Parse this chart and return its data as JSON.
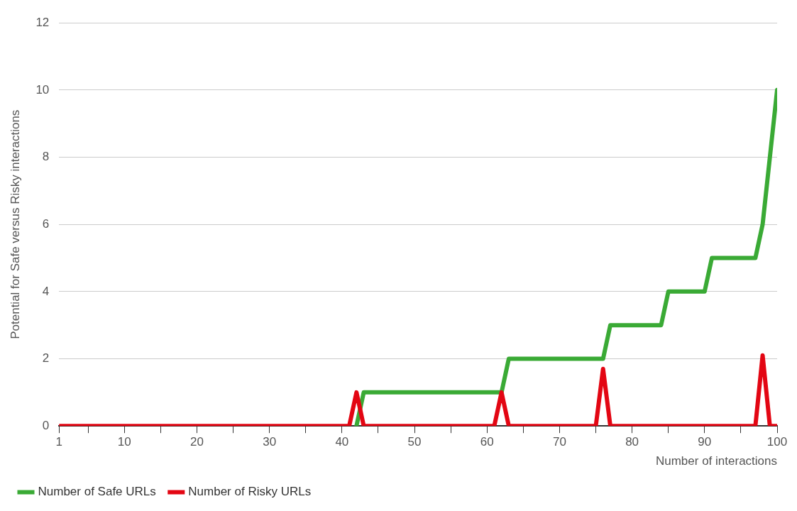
{
  "chart_data": {
    "type": "line",
    "xlabel": "Number of interactions",
    "ylabel": "Potential for Safe versus Risky interactions",
    "x": [
      1,
      2,
      3,
      4,
      5,
      6,
      7,
      8,
      9,
      10,
      11,
      12,
      13,
      14,
      15,
      16,
      17,
      18,
      19,
      20,
      21,
      22,
      23,
      24,
      25,
      26,
      27,
      28,
      29,
      30,
      31,
      32,
      33,
      34,
      35,
      36,
      37,
      38,
      39,
      40,
      41,
      42,
      43,
      44,
      45,
      46,
      47,
      48,
      49,
      50,
      51,
      52,
      53,
      54,
      55,
      56,
      57,
      58,
      59,
      60,
      61,
      62,
      63,
      64,
      65,
      66,
      67,
      68,
      69,
      70,
      71,
      72,
      73,
      74,
      75,
      76,
      77,
      78,
      79,
      80,
      81,
      82,
      83,
      84,
      85,
      86,
      87,
      88,
      89,
      90,
      91,
      92,
      93,
      94,
      95,
      96,
      97,
      98,
      99,
      100
    ],
    "series": [
      {
        "name": "Number of Safe URLs",
        "color": "#3aaa35",
        "values": [
          null,
          null,
          null,
          null,
          null,
          null,
          null,
          null,
          null,
          null,
          null,
          null,
          null,
          null,
          null,
          null,
          null,
          null,
          null,
          null,
          null,
          null,
          null,
          null,
          null,
          null,
          null,
          null,
          null,
          null,
          null,
          null,
          null,
          null,
          null,
          null,
          null,
          null,
          null,
          null,
          null,
          0,
          1,
          1,
          1,
          1,
          1,
          1,
          1,
          1,
          1,
          1,
          1,
          1,
          1,
          1,
          1,
          1,
          1,
          1,
          1,
          1,
          2,
          2,
          2,
          2,
          2,
          2,
          2,
          2,
          2,
          2,
          2,
          2,
          2,
          2,
          3,
          3,
          3,
          3,
          3,
          3,
          3,
          3,
          4,
          4,
          4,
          4,
          4,
          4,
          5,
          5,
          5,
          5,
          5,
          5,
          5,
          6,
          8,
          10
        ]
      },
      {
        "name": "Number of Risky URLs",
        "color": "#e30613",
        "values": [
          0,
          0,
          0,
          0,
          0,
          0,
          0,
          0,
          0,
          0,
          0,
          0,
          0,
          0,
          0,
          0,
          0,
          0,
          0,
          0,
          0,
          0,
          0,
          0,
          0,
          0,
          0,
          0,
          0,
          0,
          0,
          0,
          0,
          0,
          0,
          0,
          0,
          0,
          0,
          0,
          0,
          1,
          0,
          0,
          0,
          0,
          0,
          0,
          0,
          0,
          0,
          0,
          0,
          0,
          0,
          0,
          0,
          0,
          0,
          0,
          0,
          1,
          0,
          0,
          0,
          0,
          0,
          0,
          0,
          0,
          0,
          0,
          0,
          0,
          0,
          1.7,
          0,
          0,
          0,
          0,
          0,
          0,
          0,
          0,
          0,
          0,
          0,
          0,
          0,
          0,
          0,
          0,
          0,
          0,
          0,
          0,
          0,
          2.1,
          0,
          0
        ]
      }
    ],
    "xlim": [
      1,
      100
    ],
    "xticks": [
      1,
      {
        "value": 5,
        "label": null
      },
      10,
      {
        "value": 15,
        "label": null
      },
      20,
      {
        "value": 25,
        "label": null
      },
      30,
      {
        "value": 35,
        "label": null
      },
      40,
      {
        "value": 45,
        "label": null
      },
      50,
      {
        "value": 55,
        "label": null
      },
      60,
      {
        "value": 65,
        "label": null
      },
      70,
      {
        "value": 75,
        "label": null
      },
      80,
      {
        "value": 85,
        "label": null
      },
      90,
      {
        "value": 95,
        "label": null
      },
      100
    ],
    "ylim": [
      0,
      12
    ],
    "yticks": [
      0,
      2,
      4,
      6,
      8,
      10,
      12
    ],
    "grid": "y",
    "legend": "bottom left",
    "marker": "none",
    "line_style": "solid"
  }
}
